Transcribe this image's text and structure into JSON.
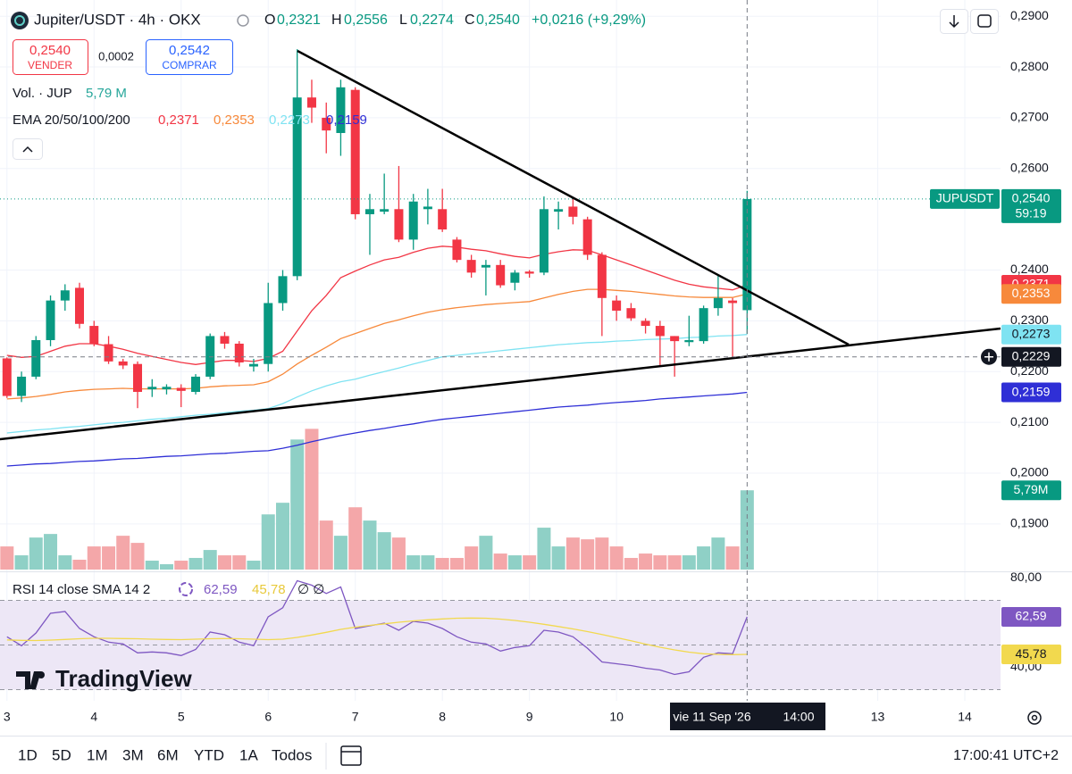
{
  "ui": {
    "symbol": "Jupiter/USDT · 4h · OKX",
    "ohlc": [
      {
        "key": "O",
        "text": "0,2321"
      },
      {
        "key": "H",
        "text": "0,2556"
      },
      {
        "key": "L",
        "text": "0,2274"
      },
      {
        "key": "C",
        "text": "0,2540"
      }
    ],
    "change": "+0,0216 (+9,29%)",
    "sell": {
      "price": "0,2540",
      "label": "VENDER"
    },
    "spread": "0,0002",
    "buy": {
      "price": "0,2542",
      "label": "COMPRAR"
    },
    "ema_legend": "EMA 20/50/100/200",
    "rsi_legend": "RSI 14 close SMA 14 2",
    "rsi_icons": "∅ ∅",
    "logo": "TradingView",
    "timeframes": [
      "1D",
      "5D",
      "1M",
      "3M",
      "6M",
      "YTD",
      "1A",
      "Todos"
    ],
    "clock": "17:00:41 UTC+2",
    "crosshair": {
      "value": 0.2229,
      "label": "0,2229",
      "date": "vie 11 Sep '26",
      "time": "14:00"
    }
  },
  "chart_data": [
    {
      "type": "candlestick",
      "symbol": "JUPUSDT",
      "countdown": "59:19",
      "last_label": "0,2540",
      "up_color": "#089981",
      "down_color": "#f23645",
      "x": [
        3,
        3.167,
        3.333,
        3.5,
        3.667,
        3.833,
        4,
        4.167,
        4.333,
        4.5,
        4.667,
        4.833,
        5,
        5.167,
        5.333,
        5.5,
        5.667,
        5.833,
        6,
        6.167,
        6.333,
        6.5,
        6.667,
        6.833,
        7,
        7.167,
        7.333,
        7.5,
        7.667,
        7.833,
        8,
        8.167,
        8.333,
        8.5,
        8.667,
        8.833,
        9,
        9.167,
        9.333,
        9.5,
        9.667,
        9.833,
        10,
        10.167,
        10.333,
        10.5,
        10.667,
        10.833,
        11,
        11.167,
        11.333,
        11.5
      ],
      "open": [
        0.2226,
        0.2152,
        0.219,
        0.2262,
        0.234,
        0.2365,
        0.229,
        0.2254,
        0.222,
        0.2215,
        0.2165,
        0.2165,
        0.2168,
        0.216,
        0.219,
        0.227,
        0.2255,
        0.221,
        0.2215,
        0.2335,
        0.2388,
        0.274,
        0.27,
        0.267,
        0.2755,
        0.251,
        0.2515,
        0.252,
        0.246,
        0.252,
        0.252,
        0.246,
        0.242,
        0.2405,
        0.241,
        0.2375,
        0.2397,
        0.2395,
        0.2515,
        0.2525,
        0.25,
        0.243,
        0.234,
        0.2325,
        0.23,
        0.229,
        0.227,
        0.2258,
        0.226,
        0.2325,
        0.234,
        0.2321
      ],
      "high": [
        0.2228,
        0.22,
        0.227,
        0.235,
        0.2372,
        0.2375,
        0.23,
        0.227,
        0.2225,
        0.222,
        0.2185,
        0.2175,
        0.2175,
        0.2195,
        0.2275,
        0.2278,
        0.226,
        0.2225,
        0.2375,
        0.24,
        0.2835,
        0.2775,
        0.273,
        0.2775,
        0.276,
        0.255,
        0.259,
        0.2605,
        0.255,
        0.256,
        0.256,
        0.2465,
        0.243,
        0.242,
        0.242,
        0.24,
        0.24,
        0.2545,
        0.2535,
        0.254,
        0.2505,
        0.2435,
        0.235,
        0.2335,
        0.2305,
        0.23,
        0.227,
        0.231,
        0.233,
        0.239,
        0.2345,
        0.2556
      ],
      "low": [
        0.2148,
        0.214,
        0.2185,
        0.225,
        0.232,
        0.2285,
        0.225,
        0.2215,
        0.2205,
        0.2128,
        0.215,
        0.2155,
        0.213,
        0.2155,
        0.2185,
        0.2245,
        0.221,
        0.22,
        0.22,
        0.232,
        0.238,
        0.269,
        0.263,
        0.2625,
        0.25,
        0.243,
        0.251,
        0.2455,
        0.244,
        0.249,
        0.2475,
        0.2415,
        0.2385,
        0.235,
        0.2365,
        0.236,
        0.2385,
        0.239,
        0.248,
        0.249,
        0.242,
        0.227,
        0.23,
        0.23,
        0.2275,
        0.221,
        0.219,
        0.225,
        0.2255,
        0.231,
        0.2225,
        0.2274
      ],
      "close": [
        0.2152,
        0.219,
        0.2262,
        0.234,
        0.236,
        0.2294,
        0.2254,
        0.222,
        0.2212,
        0.216,
        0.217,
        0.217,
        0.2162,
        0.219,
        0.227,
        0.2255,
        0.2218,
        0.2215,
        0.2335,
        0.2388,
        0.274,
        0.272,
        0.2675,
        0.276,
        0.251,
        0.252,
        0.252,
        0.246,
        0.2535,
        0.2525,
        0.248,
        0.242,
        0.2395,
        0.241,
        0.237,
        0.2395,
        0.2393,
        0.252,
        0.252,
        0.2505,
        0.243,
        0.2345,
        0.232,
        0.2305,
        0.229,
        0.227,
        0.226,
        0.2262,
        0.2325,
        0.2345,
        0.2335,
        0.254
      ],
      "lines": [
        {
          "color": "#f23645",
          "last_label": "0,2371",
          "values": [
            0.2232,
            0.2228,
            0.223,
            0.224,
            0.225,
            0.2255,
            0.2255,
            0.225,
            0.2244,
            0.2236,
            0.223,
            0.2224,
            0.2218,
            0.2214,
            0.2218,
            0.2222,
            0.2222,
            0.222,
            0.2226,
            0.224,
            0.228,
            0.232,
            0.235,
            0.2385,
            0.2398,
            0.241,
            0.242,
            0.2425,
            0.2435,
            0.2443,
            0.2447,
            0.2445,
            0.2441,
            0.2438,
            0.2432,
            0.2427,
            0.2424,
            0.2431,
            0.2436,
            0.244,
            0.2439,
            0.243,
            0.242,
            0.241,
            0.24,
            0.239,
            0.238,
            0.2372,
            0.2367,
            0.2364,
            0.2361,
            0.2371
          ]
        },
        {
          "color": "#f7893b",
          "last_label": "0,2353",
          "values": [
            0.2146,
            0.2148,
            0.2151,
            0.2155,
            0.216,
            0.2163,
            0.2165,
            0.2166,
            0.2167,
            0.2166,
            0.2166,
            0.2166,
            0.2166,
            0.2167,
            0.217,
            0.2172,
            0.2173,
            0.2174,
            0.218,
            0.2195,
            0.2215,
            0.2232,
            0.2248,
            0.2265,
            0.2275,
            0.2285,
            0.2295,
            0.2302,
            0.231,
            0.2317,
            0.2322,
            0.2326,
            0.2329,
            0.2332,
            0.2334,
            0.2336,
            0.2338,
            0.2345,
            0.2352,
            0.2358,
            0.2362,
            0.2362,
            0.236,
            0.2358,
            0.2355,
            0.2352,
            0.2349,
            0.2347,
            0.2346,
            0.2346,
            0.2346,
            0.2353
          ]
        },
        {
          "color": "#7fe3f2",
          "last_label": "0,2273",
          "values": [
            0.2079,
            0.2082,
            0.2085,
            0.2087,
            0.209,
            0.2092,
            0.2095,
            0.2098,
            0.21,
            0.2103,
            0.2106,
            0.2108,
            0.2111,
            0.2114,
            0.2116,
            0.2119,
            0.2122,
            0.2124,
            0.2127,
            0.2137,
            0.215,
            0.2162,
            0.2172,
            0.218,
            0.2185,
            0.2193,
            0.22,
            0.2207,
            0.2215,
            0.2222,
            0.2229,
            0.2232,
            0.2235,
            0.2238,
            0.2241,
            0.2244,
            0.2247,
            0.225,
            0.2253,
            0.2255,
            0.2257,
            0.2258,
            0.226,
            0.2261,
            0.2263,
            0.2264,
            0.2265,
            0.2267,
            0.2268,
            0.227,
            0.2271,
            0.2273
          ]
        },
        {
          "color": "#2f2fd6",
          "last_label": "0,2159",
          "values": [
            0.2014,
            0.2016,
            0.2018,
            0.2019,
            0.2021,
            0.2023,
            0.2024,
            0.2026,
            0.2028,
            0.2029,
            0.2031,
            0.2033,
            0.2034,
            0.2036,
            0.2038,
            0.2039,
            0.2041,
            0.2043,
            0.2044,
            0.2049,
            0.2055,
            0.2062,
            0.2068,
            0.2074,
            0.2079,
            0.2084,
            0.2088,
            0.2093,
            0.2097,
            0.2102,
            0.2106,
            0.2109,
            0.2112,
            0.2115,
            0.2118,
            0.2121,
            0.2124,
            0.2127,
            0.213,
            0.2132,
            0.2134,
            0.2137,
            0.2139,
            0.2141,
            0.2143,
            0.2146,
            0.2148,
            0.215,
            0.2152,
            0.2154,
            0.2156,
            0.2159
          ]
        }
      ],
      "xlim": [
        2.92,
        14.41
      ],
      "xticks": [
        3,
        4,
        5,
        6,
        7,
        8,
        9,
        10,
        13,
        14
      ],
      "ylim": [
        0.181,
        0.2932
      ],
      "yticks": [
        {
          "value": 0.29,
          "label": "0,2900"
        },
        {
          "value": 0.28,
          "label": "0,2800"
        },
        {
          "value": 0.27,
          "label": "0,2700"
        },
        {
          "value": 0.26,
          "label": "0,2600"
        },
        {
          "value": 0.24,
          "label": "0,2400"
        },
        {
          "value": 0.23,
          "label": "0,2300"
        },
        {
          "value": 0.22,
          "label": "0,2200"
        },
        {
          "value": 0.21,
          "label": "0,2100"
        },
        {
          "value": 0.2,
          "label": "0,2000"
        },
        {
          "value": 0.19,
          "label": "0,1900"
        }
      ],
      "grid": true
    },
    {
      "type": "bar",
      "title": "Vol. · JUP",
      "legend_label": "5,79 M",
      "last_label": "5,79M",
      "up_color": "#8fd0c6",
      "down_color": "#f4a7a9",
      "ylim": [
        0,
        10.5
      ],
      "values": [
        1.69,
        1.04,
        2.34,
        2.6,
        1.04,
        0.72,
        1.69,
        1.69,
        2.47,
        1.95,
        0.65,
        0.39,
        0.65,
        0.85,
        1.43,
        1.04,
        1.04,
        0.65,
        4.03,
        4.88,
        9.5,
        10.28,
        3.58,
        2.47,
        4.55,
        3.58,
        2.73,
        2.34,
        1.04,
        1.04,
        0.85,
        0.85,
        1.69,
        2.47,
        1.17,
        1.04,
        1.04,
        3.06,
        1.69,
        2.34,
        2.21,
        2.34,
        1.69,
        0.85,
        1.17,
        1.04,
        1.04,
        1.04,
        1.69,
        2.34,
        1.69,
        5.79
      ]
    },
    {
      "type": "line",
      "ylim": [
        23,
        83
      ],
      "yticks": [
        {
          "value": 80,
          "label": "80,00"
        },
        {
          "value": 40,
          "label": "40,00"
        }
      ],
      "levels": [
        70,
        50,
        30
      ],
      "band_color": "#ede7f6",
      "series": [
        {
          "color": "#7e57c2",
          "last_label": "62,59",
          "values": [
            53.7,
            49.7,
            55.4,
            64.2,
            65.0,
            57.4,
            53.7,
            51.3,
            50.5,
            46.5,
            46.9,
            46.5,
            45.3,
            48.0,
            55.8,
            54.6,
            51.3,
            49.7,
            62.6,
            66.7,
            78.8,
            76.8,
            73.1,
            76.0,
            57.4,
            58.6,
            59.8,
            56.6,
            60.6,
            59.8,
            57.4,
            53.7,
            51.3,
            50.5,
            47.3,
            48.9,
            49.7,
            56.6,
            55.8,
            53.7,
            48.5,
            42.4,
            41.6,
            40.8,
            39.6,
            38.8,
            36.8,
            38.0,
            44.5,
            46.5,
            46.1,
            62.59
          ]
        },
        {
          "color": "#f2d94e",
          "last_label": "45,78",
          "values": [
            52.3,
            52.1,
            52.0,
            52.2,
            52.5,
            52.8,
            53.0,
            53.0,
            52.9,
            52.8,
            52.6,
            52.5,
            52.4,
            52.6,
            52.8,
            52.9,
            52.8,
            52.6,
            52.4,
            52.6,
            53.4,
            54.5,
            55.7,
            57.0,
            58.0,
            58.8,
            59.5,
            60.2,
            60.8,
            61.3,
            61.7,
            62.0,
            62.1,
            62.0,
            61.6,
            61.0,
            60.2,
            59.3,
            58.3,
            57.2,
            56.0,
            54.7,
            53.3,
            51.9,
            50.4,
            49.0,
            47.8,
            46.8,
            46.1,
            45.8,
            45.7,
            45.78
          ]
        }
      ]
    }
  ]
}
